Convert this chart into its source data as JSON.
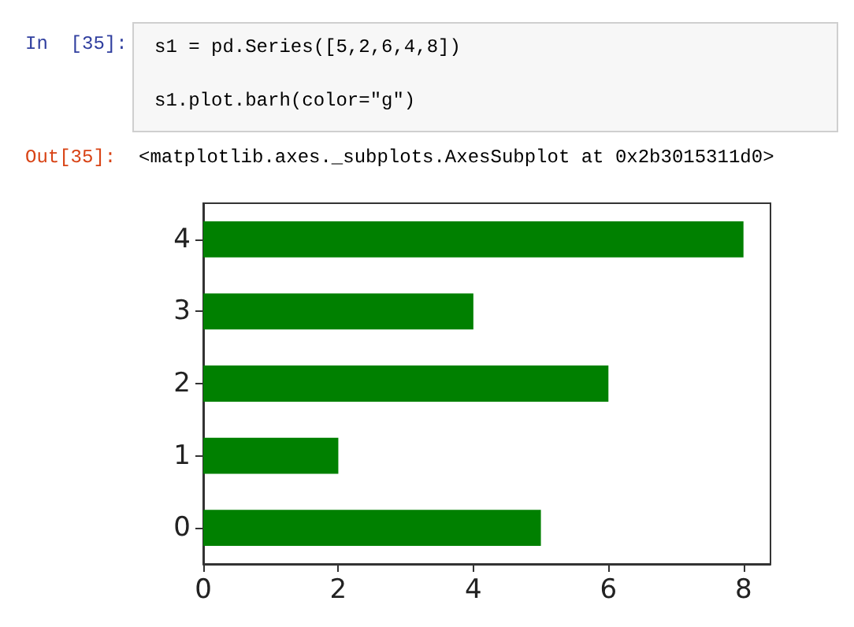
{
  "chart_data": {
    "type": "bar",
    "orientation": "horizontal",
    "categories": [
      "4",
      "3",
      "2",
      "1",
      "0"
    ],
    "values": [
      8,
      4,
      6,
      2,
      5
    ],
    "color": "#008000",
    "xlim": [
      0,
      8.4
    ],
    "xticks": [
      0,
      2,
      4,
      6,
      8
    ],
    "grid": false,
    "annotations": [
      "In  [35]:",
      "s1 = pd.Series([5,2,6,4,8])",
      "s1.plot.barh(color=\"g\")",
      "Out[35]:",
      "<matplotlib.axes._subplots.AxesSubplot at 0x2b3015311d0>"
    ]
  }
}
